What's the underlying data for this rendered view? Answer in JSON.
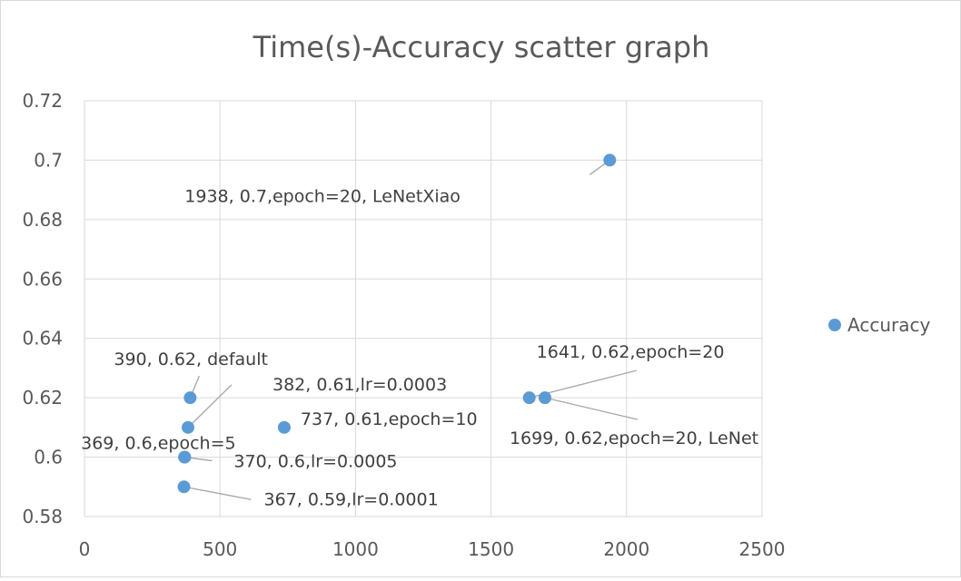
{
  "chart_data": {
    "type": "scatter",
    "title": "Time(s)-Accuracy scatter graph",
    "xlabel": "",
    "ylabel": "",
    "xlim": [
      0,
      2500
    ],
    "ylim": [
      0.58,
      0.72
    ],
    "x_ticks": [
      "0",
      "500",
      "1000",
      "1500",
      "2000",
      "2500"
    ],
    "y_ticks": [
      "0.58",
      "0.6",
      "0.62",
      "0.64",
      "0.66",
      "0.68",
      "0.7",
      "0.72"
    ],
    "grid": true,
    "legend_position": "right",
    "series": [
      {
        "name": "Accuracy",
        "color": "#5b9bd5",
        "points": [
          {
            "x": 390,
            "y": 0.62,
            "label": "390, 0.62, default"
          },
          {
            "x": 382,
            "y": 0.61,
            "label": "382, 0.61,lr=0.0003"
          },
          {
            "x": 369,
            "y": 0.6,
            "label": "369, 0.6,epoch=5"
          },
          {
            "x": 370,
            "y": 0.6,
            "label": "370, 0.6,lr=0.0005"
          },
          {
            "x": 367,
            "y": 0.59,
            "label": "367, 0.59,lr=0.0001"
          },
          {
            "x": 737,
            "y": 0.61,
            "label": "737, 0.61,epoch=10"
          },
          {
            "x": 1641,
            "y": 0.62,
            "label": "1641, 0.62,epoch=20"
          },
          {
            "x": 1699,
            "y": 0.62,
            "label": "1699, 0.62,epoch=20, LeNet"
          },
          {
            "x": 1938,
            "y": 0.7,
            "label": "1938, 0.7,epoch=20, LeNetXiao"
          }
        ]
      }
    ]
  }
}
